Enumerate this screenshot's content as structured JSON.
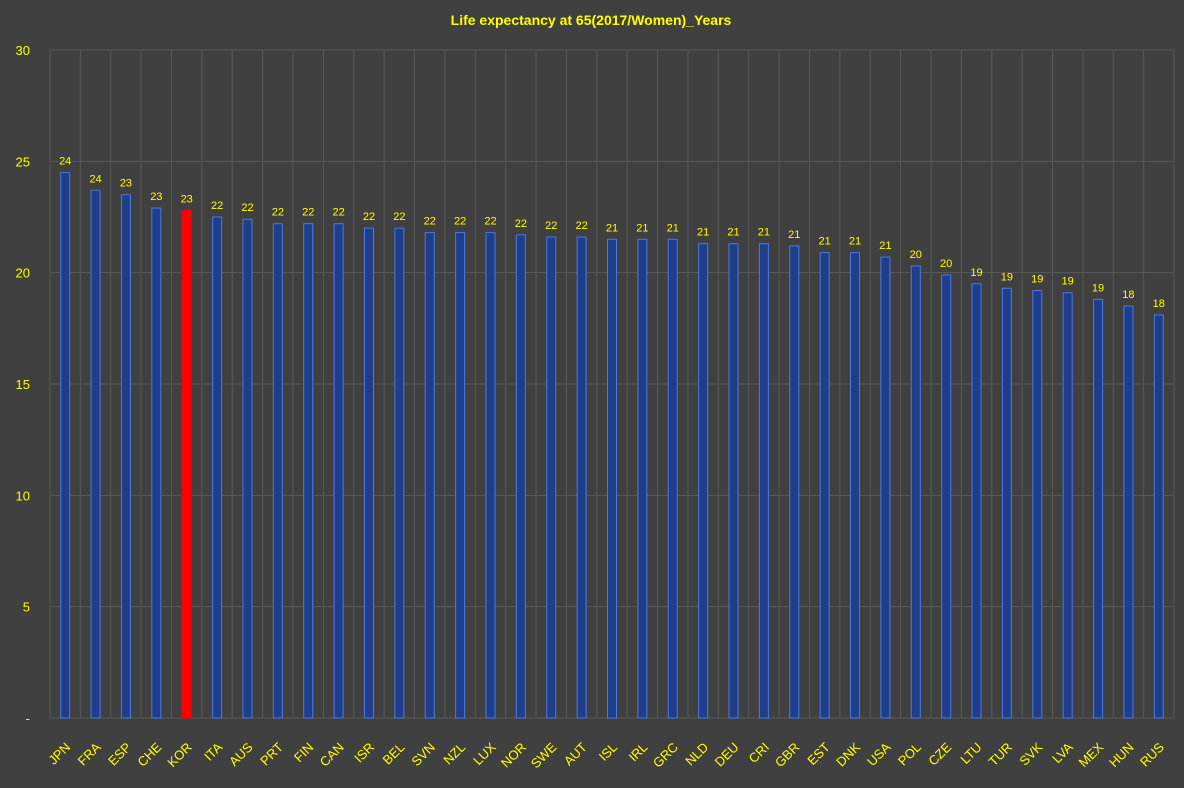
{
  "chart_data": {
    "type": "bar",
    "title": "Life expectancy at  65(2017/Women)_Years",
    "xlabel": "",
    "ylabel": "",
    "ylim": [
      0,
      30
    ],
    "yticks": [
      0,
      5,
      10,
      15,
      20,
      25,
      30
    ],
    "ytick_labels": [
      "-",
      "5",
      "10",
      "15",
      "20",
      "25",
      "30"
    ],
    "grid": true,
    "legend": "none",
    "categories": [
      "JPN",
      "FRA",
      "ESP",
      "CHE",
      "KOR",
      "ITA",
      "AUS",
      "PRT",
      "FIN",
      "CAN",
      "ISR",
      "BEL",
      "SVN",
      "NZL",
      "LUX",
      "NOR",
      "SWE",
      "AUT",
      "ISL",
      "IRL",
      "GRC",
      "NLD",
      "DEU",
      "CRI",
      "GBR",
      "EST",
      "DNK",
      "USA",
      "POL",
      "CZE",
      "LTU",
      "TUR",
      "SVK",
      "LVA",
      "MEX",
      "HUN",
      "RUS"
    ],
    "values": [
      24.5,
      23.7,
      23.5,
      22.9,
      22.8,
      22.5,
      22.4,
      22.2,
      22.2,
      22.2,
      22.0,
      22.0,
      21.8,
      21.8,
      21.8,
      21.7,
      21.6,
      21.6,
      21.5,
      21.5,
      21.5,
      21.3,
      21.3,
      21.3,
      21.2,
      20.9,
      20.9,
      20.7,
      20.3,
      19.9,
      19.5,
      19.3,
      19.2,
      19.1,
      18.8,
      18.5,
      18.1
    ],
    "data_labels": [
      "24",
      "24",
      "23",
      "23",
      "23",
      "22",
      "22",
      "22",
      "22",
      "22",
      "22",
      "22",
      "22",
      "22",
      "22",
      "22",
      "22",
      "22",
      "21",
      "21",
      "21",
      "21",
      "21",
      "21",
      "21",
      "21",
      "21",
      "21",
      "20",
      "20",
      "19",
      "19",
      "19",
      "19",
      "19",
      "18",
      "18"
    ],
    "highlight_category": "KOR",
    "colors": {
      "background": "#404040",
      "grid": "#5a5a5a",
      "bar_fill": "#1f3f8c",
      "bar_stroke": "#4a7ae0",
      "highlight_fill": "#ff0000",
      "text": "#ffff00"
    }
  }
}
